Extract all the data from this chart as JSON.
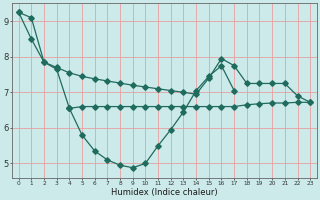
{
  "xlabel": "Humidex (Indice chaleur)",
  "line_color": "#1f6b5e",
  "bg_color": "#cceaea",
  "grid_color": "#e8a0a0",
  "ylim": [
    4.6,
    9.5
  ],
  "xlim": [
    -0.5,
    23.5
  ],
  "yticks": [
    5,
    6,
    7,
    8,
    9
  ],
  "xticks": [
    0,
    1,
    2,
    3,
    4,
    5,
    6,
    7,
    8,
    9,
    10,
    11,
    12,
    13,
    14,
    15,
    16,
    17,
    18,
    19,
    20,
    21,
    22,
    23
  ],
  "curve_steep": {
    "x": [
      0,
      1,
      2,
      3,
      4
    ],
    "y": [
      9.25,
      9.1,
      7.85,
      7.65,
      6.55
    ]
  },
  "curve_U": {
    "x": [
      4,
      5,
      6,
      7,
      8,
      9,
      10,
      11,
      12,
      13,
      14,
      15,
      16,
      17
    ],
    "y": [
      6.55,
      5.8,
      5.35,
      5.1,
      4.95,
      4.88,
      5.0,
      5.5,
      5.95,
      6.45,
      7.05,
      7.45,
      7.75,
      7.05
    ]
  },
  "curve_slant": {
    "x": [
      0,
      1,
      2,
      3,
      4,
      5,
      6,
      7,
      8,
      9,
      10,
      11,
      12,
      13,
      14,
      15,
      16,
      17,
      18,
      19,
      20,
      21,
      22,
      23
    ],
    "y": [
      9.25,
      8.5,
      7.85,
      7.7,
      7.55,
      7.45,
      7.38,
      7.32,
      7.26,
      7.2,
      7.15,
      7.1,
      7.05,
      7.0,
      6.95,
      7.4,
      7.95,
      7.75,
      7.25,
      7.25,
      7.25,
      7.25,
      6.9,
      6.72
    ]
  },
  "curve_flat": {
    "x": [
      4,
      5,
      6,
      7,
      8,
      9,
      10,
      11,
      12,
      13,
      14,
      15,
      16,
      17,
      18,
      19,
      20,
      21,
      22,
      23
    ],
    "y": [
      6.55,
      6.6,
      6.6,
      6.6,
      6.6,
      6.6,
      6.6,
      6.6,
      6.6,
      6.6,
      6.6,
      6.6,
      6.6,
      6.6,
      6.65,
      6.68,
      6.7,
      6.7,
      6.72,
      6.72
    ]
  }
}
